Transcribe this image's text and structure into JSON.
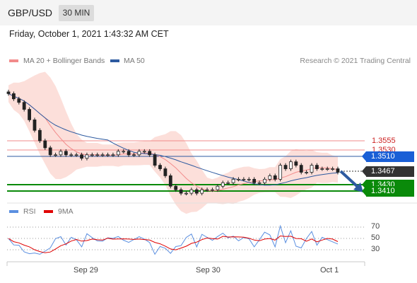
{
  "header": {
    "pair": "GBP/USD",
    "interval": "30 MIN"
  },
  "datetime": "Friday, October 1, 2021 1:43:32 AM CET",
  "legend": {
    "ma20": {
      "label": "MA 20 + Bollinger Bands",
      "color": "#f28b8b"
    },
    "ma50": {
      "label": "MA 50",
      "color": "#2d5aa0"
    },
    "rsi": {
      "label": "RSI",
      "color": "#5b8fe0"
    },
    "ma9": {
      "label": "9MA",
      "color": "#e00000"
    }
  },
  "copyright": "Research © 2021 Trading Central",
  "levels": {
    "r2": {
      "label": "1.3555",
      "color": "#cc2222"
    },
    "r1": {
      "label": "1.3530",
      "color": "#cc2222"
    },
    "pivot": {
      "label": "1.3510",
      "color": "#1a5fd6"
    },
    "last": {
      "label": "1.3467",
      "color": "#333333"
    },
    "s1": {
      "label": "1.3430",
      "color": "#0a8a0a"
    },
    "s2": {
      "label": "1.3410",
      "color": "#0a8a0a"
    }
  },
  "x_axis": {
    "labels": [
      "Sep 29",
      "Sep 30",
      "Oct 1"
    ]
  },
  "rsi_axis": {
    "ticks": [
      "70",
      "50",
      "30"
    ]
  },
  "chart_data": [
    {
      "type": "candlestick",
      "title": "GBP/USD",
      "xlabel": "",
      "ylabel": "",
      "x_ticks": [
        "Sep 29",
        "Sep 30",
        "Oct 1"
      ],
      "close_approx": [
        1.3695,
        1.368,
        1.367,
        1.365,
        1.362,
        1.359,
        1.356,
        1.354,
        1.352,
        1.352,
        1.353,
        1.352,
        1.352,
        1.352,
        1.351,
        1.352,
        1.352,
        1.352,
        1.352,
        1.352,
        1.352,
        1.353,
        1.353,
        1.352,
        1.352,
        1.353,
        1.353,
        1.352,
        1.349,
        1.348,
        1.346,
        1.343,
        1.342,
        1.341,
        1.341,
        1.342,
        1.341,
        1.342,
        1.342,
        1.342,
        1.343,
        1.344,
        1.344,
        1.345,
        1.345,
        1.345,
        1.345,
        1.344,
        1.344,
        1.345,
        1.346,
        1.345,
        1.349,
        1.348,
        1.35,
        1.349,
        1.347,
        1.347,
        1.349,
        1.348,
        1.348,
        1.348,
        1.348,
        1.347
      ],
      "price_levels": [
        1.3555,
        1.353,
        1.351,
        1.3467,
        1.343,
        1.341
      ],
      "last_price": 1.3467,
      "ylim": [
        1.339,
        1.372
      ]
    },
    {
      "type": "line",
      "title": "RSI",
      "series": [
        {
          "name": "RSI"
        },
        {
          "name": "9MA"
        }
      ],
      "rsi_levels": [
        70,
        50,
        30
      ],
      "ylim": [
        20,
        75
      ]
    }
  ]
}
